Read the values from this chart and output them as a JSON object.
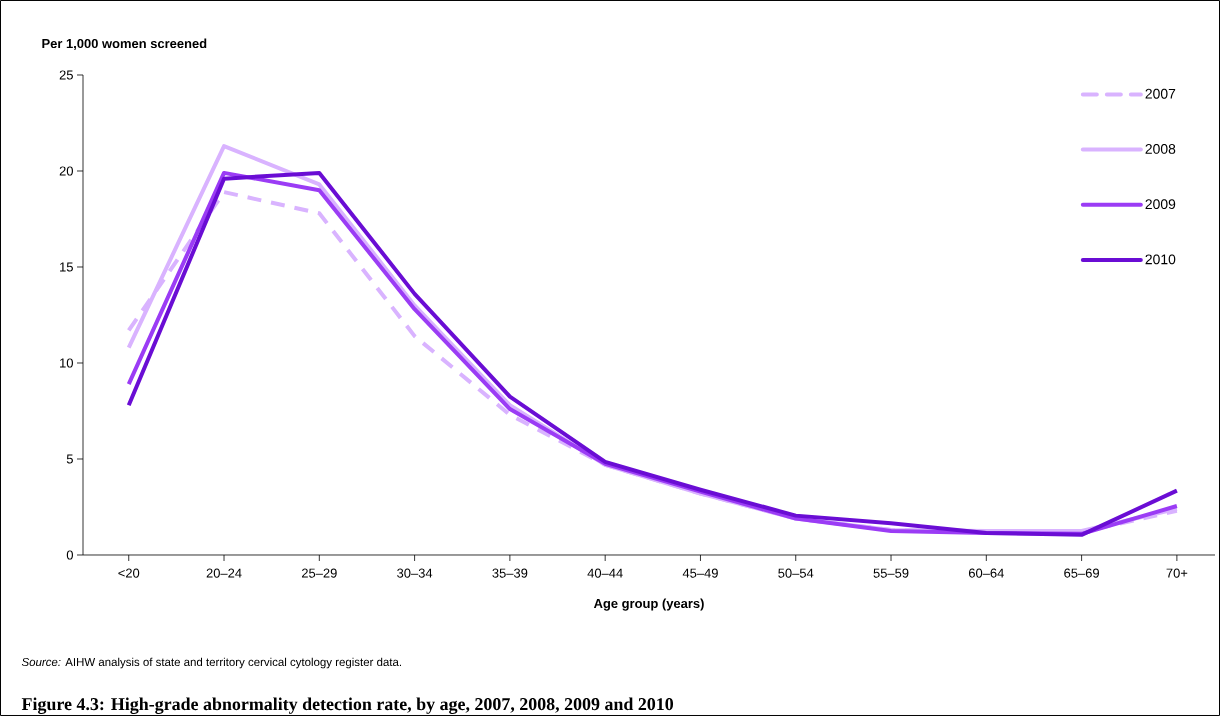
{
  "chart_data": {
    "type": "line",
    "title": "Figure 4.3: High-grade abnormality detection rate, by age, 2007, 2008, 2009 and 2010",
    "ylabel": "Per 1,000 women screened",
    "xlabel": "Age group (years)",
    "annotations": [
      "*Source:* AIHW analysis of state and territory cervical cytology register data."
    ],
    "categories": [
      "<20",
      "20–24",
      "25–29",
      "30–34",
      "35–39",
      "40–44",
      "45–49",
      "50–54",
      "55–59",
      "60–64",
      "65–69",
      "70+"
    ],
    "series": [
      {
        "name": "2007",
        "color": "#d9b3ff",
        "line_style": "dashed",
        "values": [
          11.7,
          18.9,
          17.8,
          11.4,
          7.3,
          4.7,
          3.2,
          1.9,
          1.3,
          1.2,
          1.2,
          2.3
        ]
      },
      {
        "name": "2008",
        "color": "#d9b3ff",
        "line_style": "solid",
        "values": [
          10.8,
          21.3,
          19.3,
          13.0,
          7.8,
          4.7,
          3.2,
          1.9,
          1.3,
          1.25,
          1.25,
          2.4
        ]
      },
      {
        "name": "2009",
        "color": "#9b3cf5",
        "line_style": "solid",
        "values": [
          8.9,
          19.9,
          19.0,
          12.8,
          7.6,
          4.75,
          3.3,
          1.9,
          1.25,
          1.15,
          1.1,
          2.55
        ]
      },
      {
        "name": "2010",
        "color": "#6a0dd4",
        "line_style": "solid",
        "values": [
          7.8,
          19.6,
          19.9,
          13.6,
          8.25,
          4.85,
          3.4,
          2.05,
          1.65,
          1.15,
          1.05,
          3.35
        ]
      }
    ],
    "ylim": [
      0,
      25
    ],
    "yticks": [
      0,
      5,
      10,
      15,
      20,
      25
    ],
    "grid": false,
    "legend": "top right",
    "marker": "none"
  }
}
